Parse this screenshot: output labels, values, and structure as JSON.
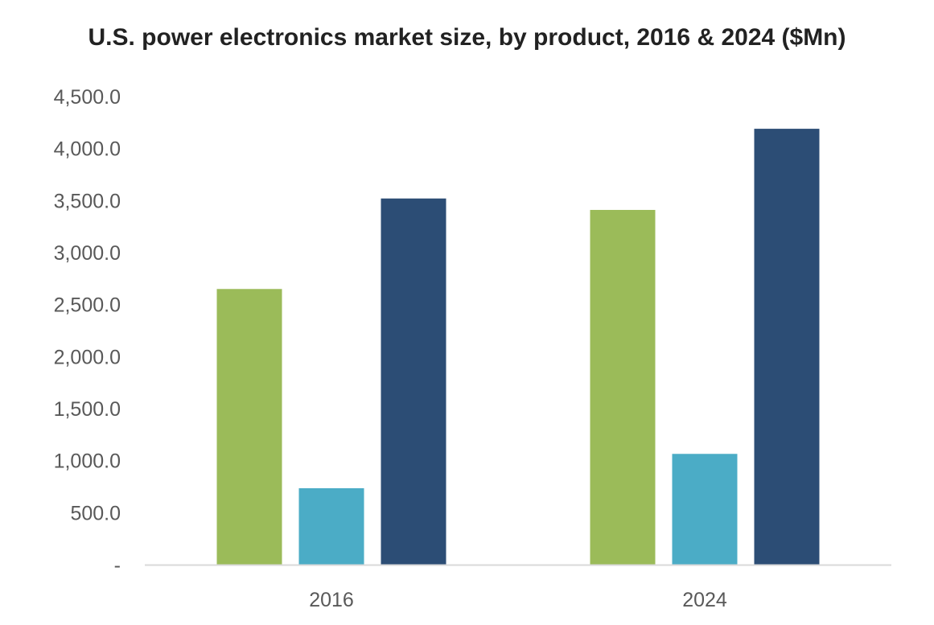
{
  "chart_data": {
    "type": "bar",
    "title": "U.S. power electronics market size, by product, 2016 & 2024 ($Mn)",
    "xlabel": "",
    "ylabel": "",
    "categories": [
      "2016",
      "2024"
    ],
    "series": [
      {
        "values": [
          2650,
          3410
        ],
        "color": "#9bbb59"
      },
      {
        "values": [
          735,
          1065
        ],
        "color": "#4bacc6"
      },
      {
        "values": [
          3520,
          4190
        ],
        "color": "#2c4d75"
      }
    ],
    "ylim": [
      0,
      4500
    ],
    "yticks": [
      {
        "value": 0,
        "label": "-"
      },
      {
        "value": 500,
        "label": "500.0"
      },
      {
        "value": 1000,
        "label": "1,000.0"
      },
      {
        "value": 1500,
        "label": "1,500.0"
      },
      {
        "value": 2000,
        "label": "2,000.0"
      },
      {
        "value": 2500,
        "label": "2,500.0"
      },
      {
        "value": 3000,
        "label": "3,000.0"
      },
      {
        "value": 3500,
        "label": "3,500.0"
      },
      {
        "value": 4000,
        "label": "4,000.0"
      },
      {
        "value": 4500,
        "label": "4,500.0"
      }
    ],
    "grid": false,
    "legend": "none",
    "axis_color": "#d9d9d9"
  }
}
